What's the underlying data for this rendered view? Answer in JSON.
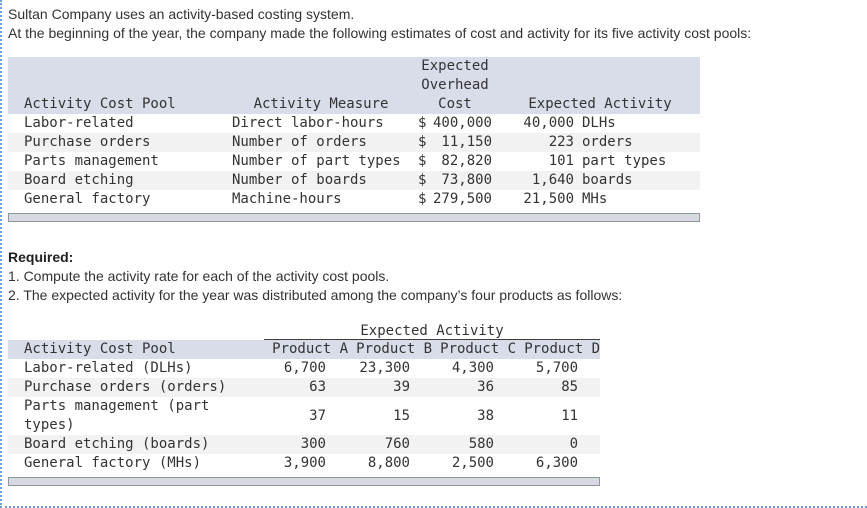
{
  "page": {
    "intro_line1": "Sultan Company uses an activity-based costing system.",
    "intro_line2": "At the beginning of the year, the company made the following estimates of cost and activity for its five activity cost pools:",
    "required_label": "Required:",
    "required_item1": "1. Compute the activity rate for each of the activity cost pools.",
    "required_item2": "2. The expected activity for the year was distributed among the company’s four products as follows:"
  },
  "estimates_table": {
    "currency": "$",
    "headers": {
      "pool": "Activity Cost Pool",
      "measure": "Activity Measure",
      "cost_line1": "Expected",
      "cost_line2": "Overhead",
      "cost_line3": "Cost",
      "activity": "Expected Activity"
    },
    "rows": [
      {
        "pool": "Labor-related",
        "measure": "Direct labor-hours",
        "cost": "400,000",
        "qty": "40,000",
        "unit": "DLHs"
      },
      {
        "pool": "Purchase orders",
        "measure": "Number of orders",
        "cost": "11,150",
        "qty": "223",
        "unit": "orders"
      },
      {
        "pool": "Parts management",
        "measure": "Number of part types",
        "cost": "82,820",
        "qty": "101",
        "unit": "part types"
      },
      {
        "pool": "Board etching",
        "measure": "Number of boards",
        "cost": "73,800",
        "qty": "1,640",
        "unit": "boards"
      },
      {
        "pool": "General factory",
        "measure": "Machine-hours",
        "cost": "279,500",
        "qty": "21,500",
        "unit": "MHs"
      }
    ]
  },
  "distribution_table": {
    "group_header": "Expected Activity",
    "headers": {
      "pool": "Activity Cost Pool",
      "product_a": "Product A",
      "product_b": "Product B",
      "product_c": "Product C",
      "product_d": "Product D"
    },
    "rows": [
      {
        "pool": "Labor-related (DLHs)",
        "a": "6,700",
        "b": "23,300",
        "c": "4,300",
        "d": "5,700"
      },
      {
        "pool": "Purchase orders (orders)",
        "a": "63",
        "b": "39",
        "c": "36",
        "d": "85"
      },
      {
        "pool": "Parts management (part types)",
        "a": "37",
        "b": "15",
        "c": "38",
        "d": "11"
      },
      {
        "pool": "Board etching (boards)",
        "a": "300",
        "b": "760",
        "c": "580",
        "d": "0"
      },
      {
        "pool": "General factory (MHs)",
        "a": "3,900",
        "b": "8,800",
        "c": "2,500",
        "d": "6,300"
      }
    ]
  },
  "colors": {
    "table_header_bg": "#d9dde9",
    "row_alt_bg": "#f2f2f2",
    "region_border_blue": "#6f9fd8",
    "scrollbar_track": "#d6d9df",
    "scrollbar_border": "#8f96a1",
    "body_text": "#333333"
  }
}
